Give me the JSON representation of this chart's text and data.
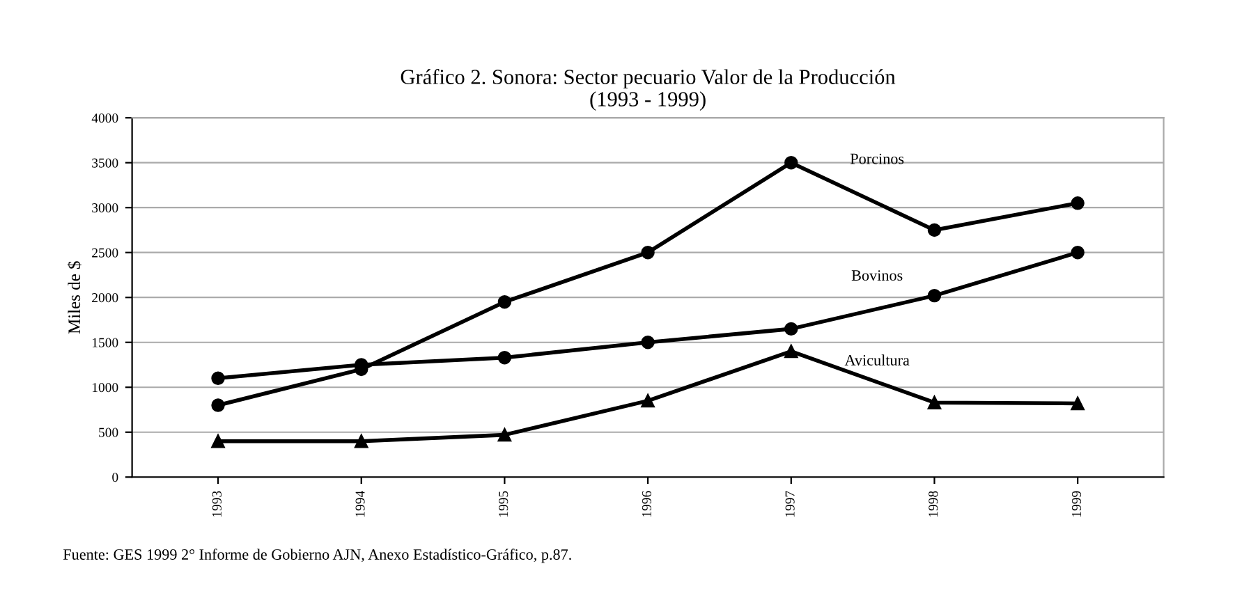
{
  "chart_data": {
    "type": "line",
    "title": "Gráfico 2. Sonora: Sector pecuario Valor de la Producción\n(1993 - 1999)",
    "ylabel": "Miles de $",
    "categories": [
      "1993",
      "1994",
      "1995",
      "1996",
      "1997",
      "1998",
      "1999"
    ],
    "series": [
      {
        "name": "Porcinos",
        "color": "#000000",
        "marker": "circle",
        "values": [
          800,
          1200,
          1950,
          2500,
          3500,
          2750,
          3050
        ]
      },
      {
        "name": "Bovinos",
        "color": "#000000",
        "marker": "circle",
        "values": [
          1100,
          1250,
          1330,
          1500,
          1650,
          2020,
          2500
        ]
      },
      {
        "name": "Avicultura",
        "color": "#000000",
        "marker": "triangle",
        "values": [
          400,
          400,
          470,
          850,
          1400,
          830,
          820
        ]
      }
    ],
    "ylim": [
      0,
      4000
    ],
    "yticks": [
      0,
      500,
      1000,
      1500,
      2000,
      2500,
      3000,
      3500,
      4000
    ],
    "grid": "y",
    "annotations": [
      "Fuente: GES 1999 2° Informe de Gobierno AJN, Anexo Estadístico-Gráfico, p.87."
    ]
  }
}
